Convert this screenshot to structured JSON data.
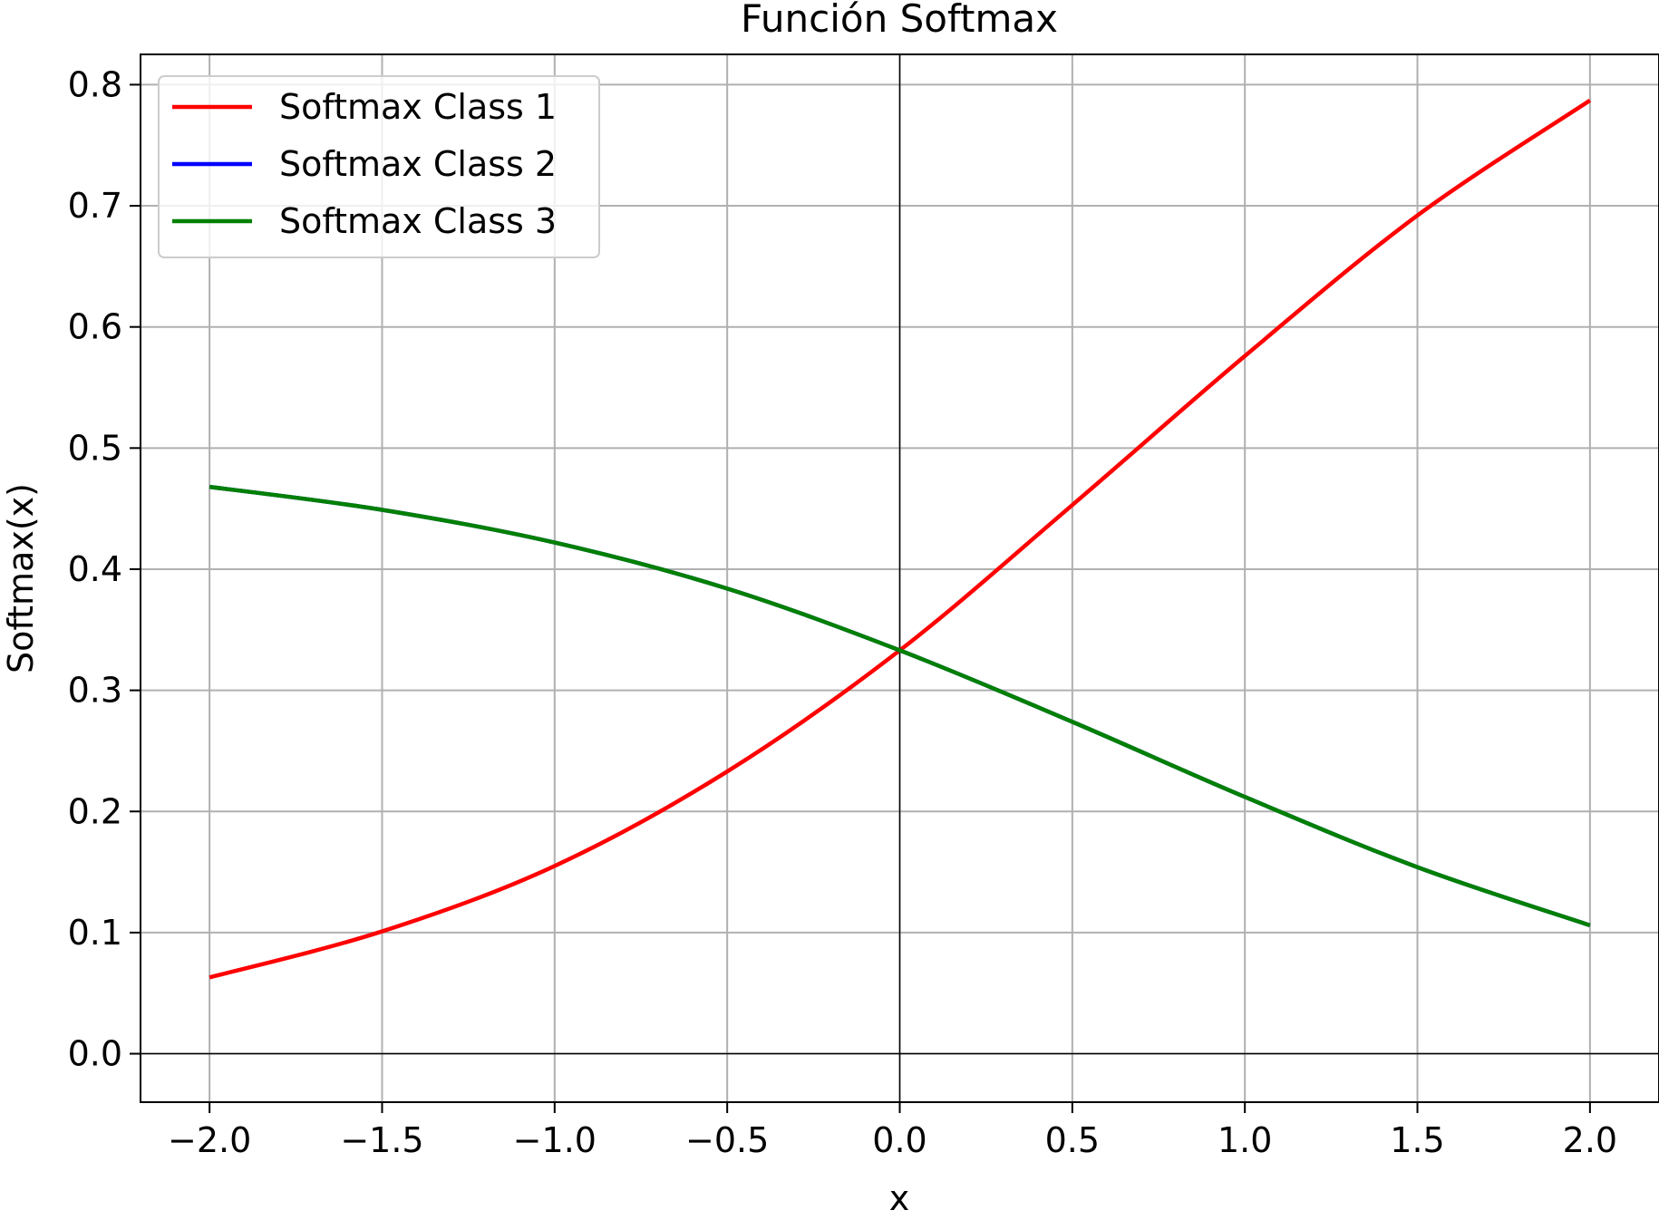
{
  "chart_data": {
    "type": "line",
    "title": "Función Softmax",
    "xlabel": "x",
    "ylabel": "Softmax(x)",
    "xlim": [
      -2.2,
      2.2
    ],
    "ylim": [
      -0.04,
      0.825
    ],
    "grid": true,
    "legend_position": "top-left",
    "x_ticks": [
      -2.0,
      -1.5,
      -1.0,
      -0.5,
      0.0,
      0.5,
      1.0,
      1.5,
      2.0
    ],
    "x_tick_labels": [
      "−2.0",
      "−1.5",
      "−1.0",
      "−0.5",
      "0.0",
      "0.5",
      "1.0",
      "1.5",
      "2.0"
    ],
    "y_ticks": [
      0.0,
      0.1,
      0.2,
      0.3,
      0.4,
      0.5,
      0.6,
      0.7,
      0.8
    ],
    "y_tick_labels": [
      "0.0",
      "0.1",
      "0.2",
      "0.3",
      "0.4",
      "0.5",
      "0.6",
      "0.7",
      "0.8"
    ],
    "x": [
      -2.0,
      -1.5,
      -1.0,
      -0.5,
      0.0,
      0.5,
      1.0,
      1.5,
      2.0
    ],
    "series": [
      {
        "name": "Softmax Class 1",
        "color": "#ff0000",
        "values": [
          0.063,
          0.101,
          0.155,
          0.233,
          0.333,
          0.453,
          0.576,
          0.692,
          0.787
        ]
      },
      {
        "name": "Softmax Class 2",
        "color": "#0000ff",
        "values": [
          0.468,
          0.449,
          0.422,
          0.384,
          0.333,
          0.274,
          0.212,
          0.154,
          0.106
        ]
      },
      {
        "name": "Softmax Class 3",
        "color": "#008000",
        "values": [
          0.468,
          0.449,
          0.422,
          0.384,
          0.333,
          0.274,
          0.212,
          0.154,
          0.106
        ]
      }
    ]
  }
}
